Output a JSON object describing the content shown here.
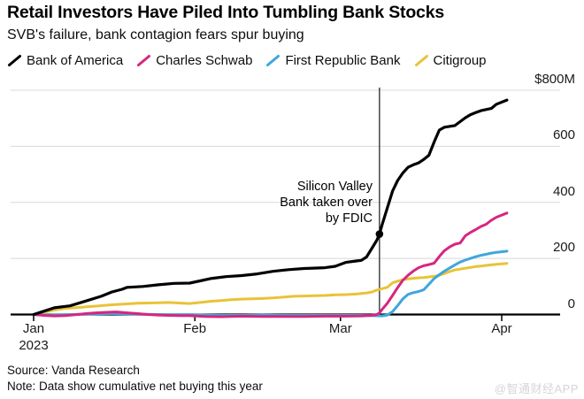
{
  "chart_data": {
    "type": "line",
    "title": "Retail Investors Have Piled Into Tumbling Bank Stocks",
    "subtitle": "SVB's failure, bank contagion fears spur buying",
    "unit": "USD millions, cumulative net retail buying in 2023",
    "x_unit": "days since Jan 1, 2023",
    "xlim_days": [
      0,
      91
    ],
    "ylim": [
      -10,
      800
    ],
    "grid": "horizontal",
    "legend_position": "top",
    "y_ticks": [
      {
        "label": "$800M",
        "value": 800
      },
      {
        "label": "600",
        "value": 600
      },
      {
        "label": "400",
        "value": 400
      },
      {
        "label": "200",
        "value": 200
      },
      {
        "label": "0",
        "value": 0
      }
    ],
    "x_ticks": [
      {
        "label": "Jan",
        "sub": "2023",
        "day": 0
      },
      {
        "label": "Feb",
        "day": 31
      },
      {
        "label": "Mar",
        "day": 59
      },
      {
        "label": "Apr",
        "day": 90
      }
    ],
    "event": {
      "day": 66.5,
      "value": 287,
      "lines": [
        "Silicon Valley",
        "Bank taken over",
        "by FDIC"
      ]
    },
    "series": [
      {
        "name": "Bank of America",
        "color": "#000000",
        "points": [
          [
            0,
            0
          ],
          [
            2,
            12
          ],
          [
            4,
            24
          ],
          [
            7,
            31
          ],
          [
            10,
            48
          ],
          [
            13,
            65
          ],
          [
            15,
            80
          ],
          [
            17,
            90
          ],
          [
            18,
            97
          ],
          [
            21,
            100
          ],
          [
            24,
            106
          ],
          [
            27,
            111
          ],
          [
            30,
            112
          ],
          [
            32,
            120
          ],
          [
            34,
            128
          ],
          [
            37,
            135
          ],
          [
            40,
            139
          ],
          [
            43,
            145
          ],
          [
            46,
            154
          ],
          [
            49,
            160
          ],
          [
            52,
            164
          ],
          [
            56,
            167
          ],
          [
            58,
            172
          ],
          [
            60,
            186
          ],
          [
            62,
            191
          ],
          [
            63,
            193
          ],
          [
            64,
            205
          ],
          [
            65,
            235
          ],
          [
            66,
            265
          ],
          [
            66.5,
            287
          ],
          [
            67,
            320
          ],
          [
            68,
            380
          ],
          [
            69,
            440
          ],
          [
            70,
            478
          ],
          [
            71,
            505
          ],
          [
            72,
            525
          ],
          [
            73,
            534
          ],
          [
            74,
            541
          ],
          [
            75,
            553
          ],
          [
            76,
            568
          ],
          [
            77,
            615
          ],
          [
            78,
            658
          ],
          [
            79,
            668
          ],
          [
            81,
            674
          ],
          [
            82,
            688
          ],
          [
            83,
            702
          ],
          [
            84,
            713
          ],
          [
            85,
            720
          ],
          [
            86,
            727
          ],
          [
            88,
            735
          ],
          [
            89,
            750
          ],
          [
            91,
            765
          ]
        ]
      },
      {
        "name": "Charles Schwab",
        "color": "#d7267f",
        "points": [
          [
            0,
            0
          ],
          [
            2,
            -3
          ],
          [
            4,
            -5
          ],
          [
            6,
            -4
          ],
          [
            8,
            -1
          ],
          [
            10,
            3
          ],
          [
            12,
            6
          ],
          [
            14,
            8
          ],
          [
            16,
            9
          ],
          [
            18,
            6
          ],
          [
            20,
            3
          ],
          [
            22,
            0
          ],
          [
            24,
            -2
          ],
          [
            26,
            -3
          ],
          [
            28,
            -4
          ],
          [
            30,
            -4
          ],
          [
            33,
            -7
          ],
          [
            36,
            -8
          ],
          [
            40,
            -6
          ],
          [
            44,
            -7
          ],
          [
            48,
            -7
          ],
          [
            52,
            -7
          ],
          [
            56,
            -6
          ],
          [
            60,
            -6
          ],
          [
            63,
            -5
          ],
          [
            65,
            -3
          ],
          [
            66,
            0
          ],
          [
            66.5,
            6
          ],
          [
            67,
            18
          ],
          [
            68,
            40
          ],
          [
            69,
            68
          ],
          [
            70,
            96
          ],
          [
            71,
            122
          ],
          [
            72,
            140
          ],
          [
            73,
            155
          ],
          [
            74,
            167
          ],
          [
            75,
            174
          ],
          [
            76,
            178
          ],
          [
            77,
            183
          ],
          [
            78,
            207
          ],
          [
            79,
            228
          ],
          [
            80,
            241
          ],
          [
            81,
            251
          ],
          [
            82,
            255
          ],
          [
            83,
            281
          ],
          [
            84,
            293
          ],
          [
            85,
            303
          ],
          [
            86,
            314
          ],
          [
            87,
            322
          ],
          [
            88,
            336
          ],
          [
            89,
            347
          ],
          [
            91,
            362
          ]
        ]
      },
      {
        "name": "First Republic Bank",
        "color": "#3fa6dc",
        "points": [
          [
            0,
            0
          ],
          [
            3,
            -2
          ],
          [
            6,
            -1
          ],
          [
            9,
            1
          ],
          [
            12,
            2
          ],
          [
            15,
            3
          ],
          [
            18,
            2
          ],
          [
            21,
            1
          ],
          [
            24,
            0
          ],
          [
            27,
            -1
          ],
          [
            30,
            -1
          ],
          [
            33,
            -2
          ],
          [
            36,
            -3
          ],
          [
            40,
            -3
          ],
          [
            44,
            -2
          ],
          [
            48,
            -3
          ],
          [
            52,
            -3
          ],
          [
            56,
            -3
          ],
          [
            60,
            -3
          ],
          [
            63,
            -3
          ],
          [
            65,
            -4
          ],
          [
            67,
            -5
          ],
          [
            68,
            -2
          ],
          [
            69,
            10
          ],
          [
            70,
            32
          ],
          [
            71,
            56
          ],
          [
            72,
            72
          ],
          [
            73,
            78
          ],
          [
            74,
            82
          ],
          [
            75,
            88
          ],
          [
            76,
            108
          ],
          [
            77,
            128
          ],
          [
            78,
            142
          ],
          [
            79,
            155
          ],
          [
            80,
            166
          ],
          [
            81,
            177
          ],
          [
            82,
            187
          ],
          [
            83,
            194
          ],
          [
            84,
            200
          ],
          [
            85,
            206
          ],
          [
            86,
            211
          ],
          [
            87,
            215
          ],
          [
            88,
            219
          ],
          [
            89,
            222
          ],
          [
            91,
            226
          ]
        ]
      },
      {
        "name": "Citigroup",
        "color": "#e9c338",
        "points": [
          [
            0,
            0
          ],
          [
            2,
            8
          ],
          [
            4,
            16
          ],
          [
            6,
            21
          ],
          [
            8,
            24
          ],
          [
            10,
            27
          ],
          [
            12,
            30
          ],
          [
            14,
            33
          ],
          [
            16,
            36
          ],
          [
            18,
            38
          ],
          [
            20,
            40
          ],
          [
            22,
            41
          ],
          [
            24,
            42
          ],
          [
            26,
            43
          ],
          [
            28,
            41
          ],
          [
            30,
            39
          ],
          [
            32,
            43
          ],
          [
            34,
            47
          ],
          [
            36,
            50
          ],
          [
            38,
            53
          ],
          [
            40,
            55
          ],
          [
            42,
            56
          ],
          [
            44,
            57
          ],
          [
            46,
            59
          ],
          [
            48,
            62
          ],
          [
            50,
            65
          ],
          [
            52,
            66
          ],
          [
            54,
            67
          ],
          [
            56,
            68
          ],
          [
            58,
            70
          ],
          [
            60,
            71
          ],
          [
            62,
            73
          ],
          [
            64,
            77
          ],
          [
            65,
            80
          ],
          [
            66,
            87
          ],
          [
            67,
            92
          ],
          [
            68,
            97
          ],
          [
            69,
            113
          ],
          [
            70,
            119
          ],
          [
            71,
            124
          ],
          [
            72,
            127
          ],
          [
            73,
            129
          ],
          [
            74,
            131
          ],
          [
            75,
            132
          ],
          [
            76,
            134
          ],
          [
            77,
            136
          ],
          [
            78,
            140
          ],
          [
            79,
            146
          ],
          [
            80,
            153
          ],
          [
            81,
            159
          ],
          [
            82,
            162
          ],
          [
            83,
            165
          ],
          [
            84,
            168
          ],
          [
            85,
            171
          ],
          [
            86,
            173
          ],
          [
            87,
            175
          ],
          [
            88,
            177
          ],
          [
            89,
            179
          ],
          [
            91,
            182
          ]
        ]
      }
    ]
  },
  "footer": {
    "source": "Source: Vanda Research",
    "note": "Note: Data show cumulative net buying this year"
  },
  "watermark": "@智通财经APP",
  "colors": {
    "grid": "#d8d8d8",
    "axis": "#000000",
    "text": "#0d0d0d",
    "watermark": "#d5d5d5"
  }
}
